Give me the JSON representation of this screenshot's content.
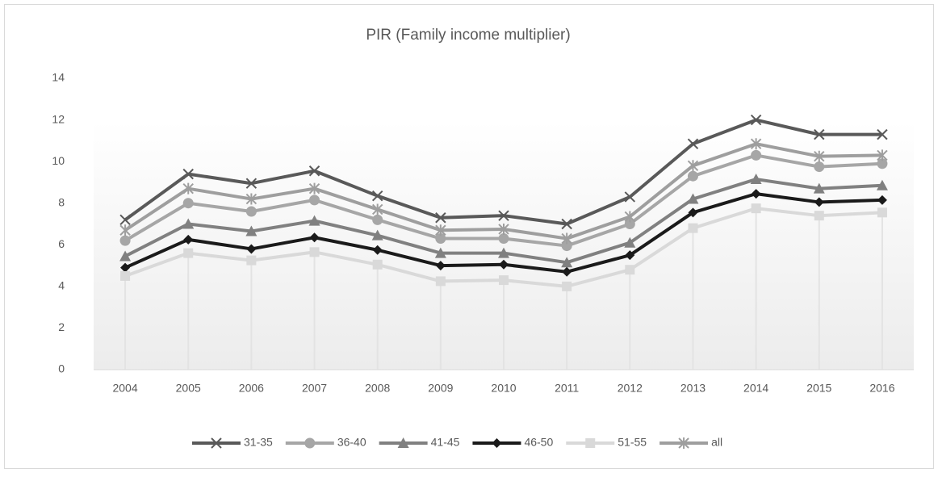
{
  "chart_data": {
    "type": "line",
    "title": "PIR (Family income multiplier)",
    "categories": [
      "2004",
      "2005",
      "2006",
      "2007",
      "2008",
      "2009",
      "2010",
      "2011",
      "2012",
      "2013",
      "2014",
      "2015",
      "2016"
    ],
    "series": [
      {
        "name": "31-35",
        "color": "#595959",
        "marker": "x",
        "values": [
          7.2,
          9.4,
          8.95,
          9.55,
          8.35,
          7.3,
          7.4,
          7.0,
          8.3,
          10.85,
          12.0,
          11.3,
          11.3
        ]
      },
      {
        "name": "36-40",
        "color": "#a6a6a6",
        "marker": "circle",
        "values": [
          6.2,
          8.0,
          7.6,
          8.15,
          7.2,
          6.3,
          6.3,
          5.95,
          7.0,
          9.3,
          10.3,
          9.75,
          9.9
        ]
      },
      {
        "name": "41-45",
        "color": "#808080",
        "marker": "triangle",
        "values": [
          5.45,
          7.0,
          6.65,
          7.15,
          6.45,
          5.6,
          5.6,
          5.15,
          6.1,
          8.2,
          9.15,
          8.7,
          8.85
        ]
      },
      {
        "name": "46-50",
        "color": "#1a1a1a",
        "marker": "diamond",
        "values": [
          4.9,
          6.25,
          5.8,
          6.35,
          5.75,
          5.0,
          5.05,
          4.7,
          5.5,
          7.55,
          8.45,
          8.05,
          8.15
        ]
      },
      {
        "name": "51-55",
        "color": "#d9d9d9",
        "marker": "square",
        "values": [
          4.5,
          5.6,
          5.25,
          5.65,
          5.05,
          4.25,
          4.3,
          4.0,
          4.8,
          6.8,
          7.75,
          7.4,
          7.55
        ]
      },
      {
        "name": "all",
        "color": "#9e9e9e",
        "marker": "star",
        "values": [
          6.7,
          8.7,
          8.2,
          8.7,
          7.7,
          6.7,
          6.75,
          6.3,
          7.35,
          9.8,
          10.85,
          10.25,
          10.3
        ]
      }
    ],
    "ylim": [
      0,
      14
    ],
    "yticks": [
      0,
      2,
      4,
      6,
      8,
      10,
      12,
      14
    ],
    "grid": false,
    "legend": "bottom"
  }
}
